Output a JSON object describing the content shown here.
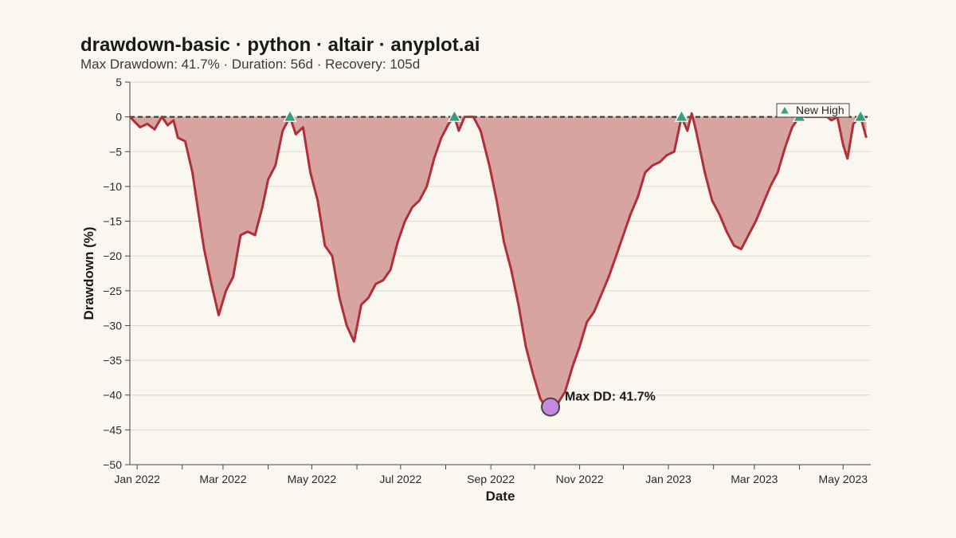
{
  "title": "drawdown-basic · python · altair · anyplot.ai",
  "subtitle": "Max Drawdown: 41.7% · Duration: 56d · Recovery: 105d",
  "colors": {
    "background": "#faf7f1",
    "line": "#b03038",
    "fill": "#d49a96",
    "high_marker": "#3a9e7c",
    "max_marker": "#c58ae0",
    "zero_line": "#333333"
  },
  "chart_data": {
    "type": "area",
    "xlabel": "Date",
    "ylabel": "Drawdown (%)",
    "x_range": [
      "2021-12-27",
      "2023-05-20"
    ],
    "ylim": [
      -50,
      5
    ],
    "y_ticks": [
      5,
      0,
      -5,
      -10,
      -15,
      -20,
      -25,
      -30,
      -35,
      -40,
      -45,
      -50
    ],
    "y_tick_labels": [
      "5",
      "0",
      "−5",
      "−10",
      "−15",
      "−20",
      "−25",
      "−30",
      "−35",
      "−40",
      "−45",
      "−50"
    ],
    "x_ticks": [
      {
        "date": "2022-01-01",
        "label": "Jan 2022"
      },
      {
        "date": "2022-03-01",
        "label": "Mar 2022"
      },
      {
        "date": "2022-05-01",
        "label": "May 2022"
      },
      {
        "date": "2022-07-01",
        "label": "Jul 2022"
      },
      {
        "date": "2022-09-01",
        "label": "Sep 2022"
      },
      {
        "date": "2022-11-01",
        "label": "Nov 2022"
      },
      {
        "date": "2023-01-01",
        "label": "Jan 2023"
      },
      {
        "date": "2023-03-01",
        "label": "Mar 2023"
      },
      {
        "date": "2023-05-01",
        "label": "May 2023"
      }
    ],
    "x_minor_ticks": [
      "2022-02-01",
      "2022-04-01",
      "2022-06-01",
      "2022-08-01",
      "2022-10-01",
      "2022-12-01",
      "2023-02-01",
      "2023-04-01"
    ],
    "grid": true,
    "series": [
      {
        "points": [
          [
            "2021-12-27",
            0
          ],
          [
            "2022-01-03",
            -1.5
          ],
          [
            "2022-01-08",
            -1
          ],
          [
            "2022-01-13",
            -1.8
          ],
          [
            "2022-01-18",
            0
          ],
          [
            "2022-01-22",
            -1.2
          ],
          [
            "2022-01-26",
            -0.5
          ],
          [
            "2022-01-29",
            -3
          ],
          [
            "2022-02-03",
            -3.5
          ],
          [
            "2022-02-08",
            -8
          ],
          [
            "2022-02-13",
            -15
          ],
          [
            "2022-02-16",
            -19
          ],
          [
            "2022-02-21",
            -24
          ],
          [
            "2022-02-26",
            -28.5
          ],
          [
            "2022-03-03",
            -25
          ],
          [
            "2022-03-08",
            -23
          ],
          [
            "2022-03-13",
            -17
          ],
          [
            "2022-03-18",
            -16.5
          ],
          [
            "2022-03-23",
            -17
          ],
          [
            "2022-03-28",
            -13
          ],
          [
            "2022-04-01",
            -9
          ],
          [
            "2022-04-06",
            -7
          ],
          [
            "2022-04-11",
            -2
          ],
          [
            "2022-04-16",
            0
          ],
          [
            "2022-04-20",
            -2.5
          ],
          [
            "2022-04-25",
            -1.5
          ],
          [
            "2022-04-30",
            -8
          ],
          [
            "2022-05-05",
            -12
          ],
          [
            "2022-05-10",
            -18.5
          ],
          [
            "2022-05-15",
            -20
          ],
          [
            "2022-05-20",
            -26
          ],
          [
            "2022-05-25",
            -30
          ],
          [
            "2022-05-30",
            -32.3
          ],
          [
            "2022-06-04",
            -27
          ],
          [
            "2022-06-09",
            -26
          ],
          [
            "2022-06-14",
            -24
          ],
          [
            "2022-06-19",
            -23.5
          ],
          [
            "2022-06-24",
            -22
          ],
          [
            "2022-06-29",
            -18
          ],
          [
            "2022-07-04",
            -15
          ],
          [
            "2022-07-09",
            -13
          ],
          [
            "2022-07-14",
            -12
          ],
          [
            "2022-07-19",
            -10
          ],
          [
            "2022-07-24",
            -6
          ],
          [
            "2022-07-29",
            -3
          ],
          [
            "2022-08-03",
            -1
          ],
          [
            "2022-08-07",
            0
          ],
          [
            "2022-08-10",
            -2
          ],
          [
            "2022-08-14",
            0
          ],
          [
            "2022-08-20",
            0
          ],
          [
            "2022-08-25",
            -2
          ],
          [
            "2022-08-31",
            -7
          ],
          [
            "2022-09-05",
            -12
          ],
          [
            "2022-09-10",
            -18
          ],
          [
            "2022-09-15",
            -22
          ],
          [
            "2022-09-20",
            -27
          ],
          [
            "2022-09-25",
            -33
          ],
          [
            "2022-09-30",
            -37
          ],
          [
            "2022-10-05",
            -40.5
          ],
          [
            "2022-10-08",
            -41.5
          ],
          [
            "2022-10-12",
            -41.7
          ],
          [
            "2022-10-17",
            -41.2
          ],
          [
            "2022-10-22",
            -39.5
          ],
          [
            "2022-10-27",
            -36
          ],
          [
            "2022-11-01",
            -33
          ],
          [
            "2022-11-06",
            -29.5
          ],
          [
            "2022-11-11",
            -28
          ],
          [
            "2022-11-16",
            -25.5
          ],
          [
            "2022-11-21",
            -23
          ],
          [
            "2022-11-26",
            -20
          ],
          [
            "2022-12-01",
            -17
          ],
          [
            "2022-12-06",
            -14
          ],
          [
            "2022-12-11",
            -11.5
          ],
          [
            "2022-12-16",
            -8
          ],
          [
            "2022-12-21",
            -7
          ],
          [
            "2022-12-26",
            -6.5
          ],
          [
            "2022-12-31",
            -5.5
          ],
          [
            "2023-01-05",
            -5
          ],
          [
            "2023-01-10",
            0
          ],
          [
            "2023-01-14",
            -2
          ],
          [
            "2023-01-17",
            0.5
          ],
          [
            "2023-01-20",
            -2
          ],
          [
            "2023-01-26",
            -8
          ],
          [
            "2023-01-31",
            -12
          ],
          [
            "2023-02-05",
            -14
          ],
          [
            "2023-02-10",
            -16.5
          ],
          [
            "2023-02-15",
            -18.5
          ],
          [
            "2023-02-20",
            -19
          ],
          [
            "2023-02-25",
            -17
          ],
          [
            "2023-03-02",
            -15
          ],
          [
            "2023-03-07",
            -12.5
          ],
          [
            "2023-03-12",
            -10
          ],
          [
            "2023-03-17",
            -8
          ],
          [
            "2023-03-22",
            -4.5
          ],
          [
            "2023-03-27",
            -1.5
          ],
          [
            "2023-04-01",
            0
          ],
          [
            "2023-04-20",
            0
          ],
          [
            "2023-04-23",
            -0.5
          ],
          [
            "2023-04-27",
            0
          ],
          [
            "2023-05-01",
            -4
          ],
          [
            "2023-05-04",
            -6
          ],
          [
            "2023-05-08",
            -1
          ],
          [
            "2023-05-13",
            0
          ],
          [
            "2023-05-17",
            -3
          ]
        ]
      }
    ],
    "new_highs": [
      [
        "2022-04-16",
        0
      ],
      [
        "2022-08-07",
        0
      ],
      [
        "2023-01-10",
        0
      ],
      [
        "2023-04-01",
        0
      ],
      [
        "2023-05-13",
        0
      ]
    ],
    "max_drawdown_point": {
      "date": "2022-10-12",
      "value": -41.7,
      "label": "Max DD: 41.7%"
    },
    "legend": {
      "label": "New High",
      "placement": "top-right"
    }
  }
}
